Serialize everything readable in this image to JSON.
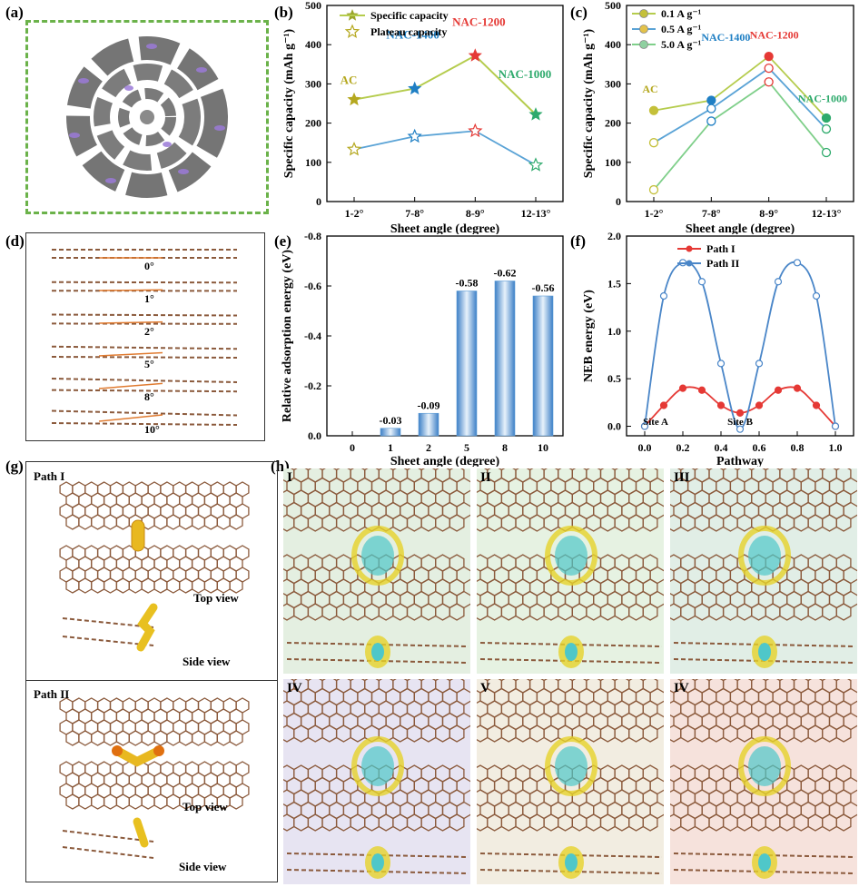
{
  "labels": {
    "a": "(a)",
    "b": "(b)",
    "c": "(c)",
    "d": "(d)",
    "e": "(e)",
    "f": "(f)",
    "g": "(g)",
    "h": "(h)"
  },
  "panel_d": {
    "angles": [
      "0°",
      "1°",
      "2°",
      "5°",
      "8°",
      "10°"
    ]
  },
  "panel_g": {
    "path1": "Path I",
    "path2": "Path II",
    "top": "Top view",
    "side": "Side view"
  },
  "panel_h": {
    "tiles": [
      "I",
      "II",
      "III",
      "IV",
      "V",
      "IV"
    ],
    "tile_colors": [
      "#e4efe1",
      "#e6f2e2",
      "#e1eee6",
      "#e7e4f2",
      "#f2ede1",
      "#f6e2dc"
    ]
  },
  "colors": {
    "green_line": "#b5cc4d",
    "blue_line": "#5aa3d6",
    "star_red": "#e53935",
    "star_green": "#2eaa6c",
    "star_blue": "#1f7fc4",
    "bar_blue": "#5b9bd5",
    "path1": "#e53935",
    "path2": "#4a86c8"
  },
  "chart_data": [
    {
      "id": "b",
      "type": "line",
      "xlabel": "Sheet angle (degree)",
      "ylabel": "Specific capacity (mAh g⁻¹)",
      "categories": [
        "1-2°",
        "7-8°",
        "8-9°",
        "12-13°"
      ],
      "ylim": [
        0,
        500
      ],
      "yticks": [
        0,
        100,
        200,
        300,
        400,
        500
      ],
      "series": [
        {
          "name": "Specific capacity",
          "values": [
            260,
            288,
            372,
            222
          ]
        },
        {
          "name": "Plateau capacity",
          "values": [
            133,
            166,
            180,
            93
          ]
        }
      ],
      "annotations": [
        {
          "text": "AC",
          "color": "#b5a81f"
        },
        {
          "text": "NAC-1400",
          "color": "#1f7fc4"
        },
        {
          "text": "NAC-1200",
          "color": "#e53935"
        },
        {
          "text": "NAC-1000",
          "color": "#2eaa6c"
        }
      ]
    },
    {
      "id": "c",
      "type": "line",
      "xlabel": "Sheet angle (degree)",
      "ylabel": "Specific capacity (mAh g⁻¹)",
      "categories": [
        "1-2°",
        "7-8°",
        "8-9°",
        "12-13°"
      ],
      "ylim": [
        0,
        500
      ],
      "yticks": [
        0,
        100,
        200,
        300,
        400,
        500
      ],
      "series": [
        {
          "name": "0.1 A g⁻¹",
          "values": [
            232,
            258,
            370,
            213
          ]
        },
        {
          "name": "0.5 A g⁻¹",
          "values": [
            150,
            237,
            340,
            185
          ]
        },
        {
          "name": "5.0 A g⁻¹",
          "values": [
            30,
            205,
            305,
            125
          ]
        }
      ],
      "annotations": [
        {
          "text": "AC",
          "color": "#b5a81f"
        },
        {
          "text": "NAC-1400",
          "color": "#1f7fc4"
        },
        {
          "text": "NAC-1200",
          "color": "#e53935"
        },
        {
          "text": "NAC-1000",
          "color": "#2eaa6c"
        }
      ]
    },
    {
      "id": "e",
      "type": "bar",
      "xlabel": "Sheet angle (degree)",
      "ylabel": "Relative adsorption energy (eV)",
      "categories": [
        "0",
        "1",
        "2",
        "5",
        "8",
        "10"
      ],
      "values": [
        0,
        -0.03,
        -0.09,
        -0.58,
        -0.62,
        -0.56
      ],
      "value_labels": [
        "",
        "-0.03",
        "-0.09",
        "-0.58",
        "-0.62",
        "-0.56"
      ],
      "ylim": [
        0,
        -0.8
      ],
      "yticks": [
        "0.0",
        "-0.2",
        "-0.4",
        "-0.6",
        "-0.8"
      ]
    },
    {
      "id": "f",
      "type": "line",
      "xlabel": "Pathway",
      "ylabel": "NEB energy (eV)",
      "x": [
        0,
        0.1,
        0.2,
        0.3,
        0.4,
        0.5,
        0.6,
        0.7,
        0.8,
        0.9,
        1.0
      ],
      "xticks": [
        "0.0",
        "0.2",
        "0.4",
        "0.6",
        "0.8",
        "1.0"
      ],
      "ylim": [
        0,
        2.0
      ],
      "yticks": [
        "0.0",
        "0.5",
        "1.0",
        "1.5",
        "2.0"
      ],
      "series": [
        {
          "name": "Path I",
          "values": [
            0,
            0.22,
            0.4,
            0.38,
            0.22,
            0.14,
            0.22,
            0.38,
            0.4,
            0.22,
            0
          ]
        },
        {
          "name": "Path II",
          "values": [
            0,
            1.37,
            1.72,
            1.52,
            0.66,
            -0.03,
            0.66,
            1.52,
            1.72,
            1.37,
            0
          ]
        }
      ],
      "annotations": [
        "Site A",
        "Site B"
      ]
    }
  ]
}
